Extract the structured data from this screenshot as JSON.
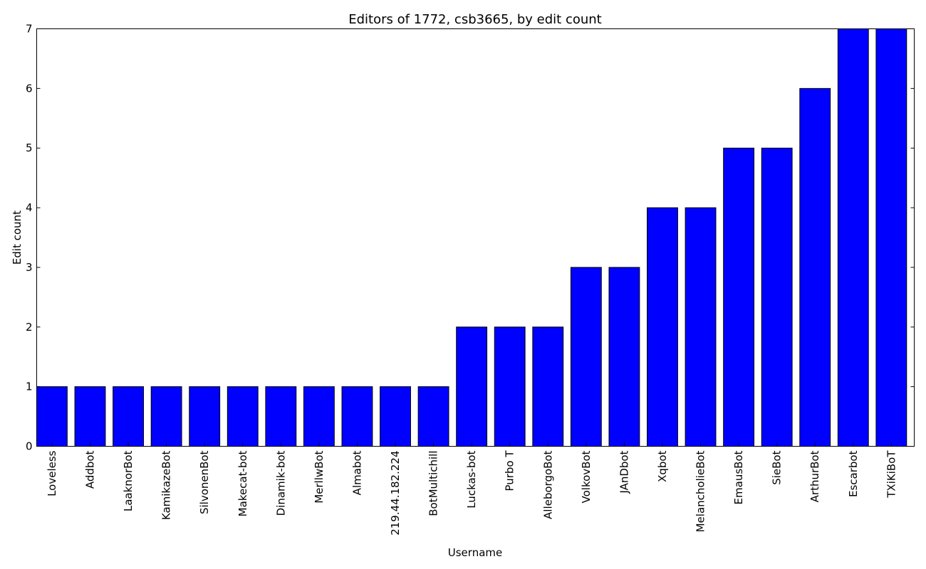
{
  "chart_data": {
    "type": "bar",
    "title": "Editors of 1772, csb3665, by edit count",
    "xlabel": "Username",
    "ylabel": "Edit count",
    "ylim": [
      0,
      7
    ],
    "yticks": [
      "0",
      "1",
      "2",
      "3",
      "4",
      "5",
      "6",
      "7"
    ],
    "grid": false,
    "bar_color": "#0000ff",
    "categories": [
      "Loveless",
      "Addbot",
      "LaaknorBot",
      "KamikazeBot",
      "SilvonenBot",
      "Makecat-bot",
      "Dinamik-bot",
      "MerllwBot",
      "Almabot",
      "219.44.182.224",
      "BotMultichill",
      "Luckas-bot",
      "Purbo T",
      "AlleborgoBot",
      "VolkovBot",
      "JAnDbot",
      "Xqbot",
      "MelancholieBot",
      "EmausBot",
      "SieBot",
      "ArthurBot",
      "Escarbot",
      "TXiKiBoT"
    ],
    "values": [
      1,
      1,
      1,
      1,
      1,
      1,
      1,
      1,
      1,
      1,
      1,
      2,
      2,
      2,
      3,
      3,
      4,
      4,
      5,
      5,
      6,
      7,
      7
    ]
  }
}
